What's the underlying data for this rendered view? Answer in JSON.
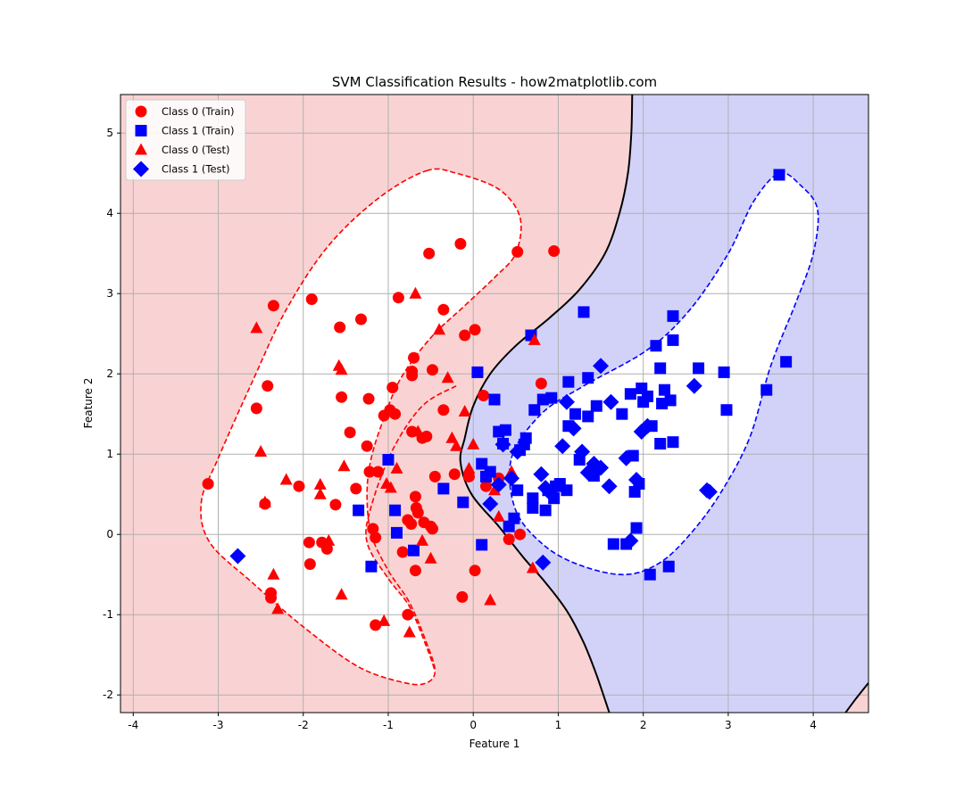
{
  "chart_data": {
    "type": "scatter",
    "title": "SVM Classification Results - how2matplotlib.com",
    "xlabel": "Feature 1",
    "ylabel": "Feature 2",
    "xlim": [
      -4.15,
      4.65
    ],
    "ylim": [
      -2.22,
      5.48
    ],
    "xticks": [
      -4,
      -3,
      -2,
      -1,
      0,
      1,
      2,
      3,
      4
    ],
    "yticks": [
      -2,
      -1,
      0,
      1,
      2,
      3,
      4,
      5
    ],
    "grid": true,
    "legend_position": "top-left",
    "colors": {
      "class0": "#ff0000",
      "class1": "#0000ff",
      "region0": "#f9d3d3",
      "region1": "#d2d2f8",
      "boundary": "#000000",
      "grid": "#b0b0b0"
    },
    "regions": [
      {
        "name": "class-0-region",
        "color": "#f9d3d3"
      },
      {
        "name": "class-1-region",
        "color": "#d2d2f8"
      }
    ],
    "decision_boundary": [
      [
        1.87,
        5.48
      ],
      [
        1.86,
        5.0
      ],
      [
        1.82,
        4.5
      ],
      [
        1.72,
        4.0
      ],
      [
        1.55,
        3.5
      ],
      [
        1.25,
        3.05
      ],
      [
        0.9,
        2.7
      ],
      [
        0.5,
        2.35
      ],
      [
        0.2,
        2.0
      ],
      [
        0.0,
        1.6
      ],
      [
        -0.1,
        1.2
      ],
      [
        -0.15,
        0.9
      ],
      [
        -0.02,
        0.5
      ],
      [
        0.3,
        0.1
      ],
      [
        0.6,
        -0.3
      ],
      [
        0.85,
        -0.6
      ],
      [
        1.1,
        -0.95
      ],
      [
        1.3,
        -1.35
      ],
      [
        1.45,
        -1.75
      ],
      [
        1.6,
        -2.22
      ]
    ],
    "decision_boundary_2": [
      [
        4.38,
        -2.22
      ],
      [
        4.5,
        -2.05
      ],
      [
        4.65,
        -1.85
      ]
    ],
    "margin_class0": [
      [
        -0.55,
        4.53
      ],
      [
        -0.2,
        4.5
      ],
      [
        0.3,
        4.3
      ],
      [
        0.55,
        3.95
      ],
      [
        0.5,
        3.5
      ],
      [
        0.25,
        3.2
      ],
      [
        -0.1,
        2.85
      ],
      [
        -0.5,
        2.45
      ],
      [
        -0.85,
        1.95
      ],
      [
        -1.05,
        1.45
      ],
      [
        -1.2,
        0.95
      ],
      [
        -1.25,
        0.5
      ],
      [
        -1.2,
        0.0
      ],
      [
        -1.0,
        -0.45
      ],
      [
        -0.75,
        -0.85
      ],
      [
        -0.55,
        -1.35
      ],
      [
        -0.45,
        -1.7
      ],
      [
        -0.55,
        -1.85
      ],
      [
        -0.8,
        -1.85
      ],
      [
        -1.35,
        -1.65
      ],
      [
        -2.0,
        -1.15
      ],
      [
        -2.6,
        -0.6
      ],
      [
        -3.1,
        -0.1
      ],
      [
        -3.2,
        0.4
      ],
      [
        -3.0,
        0.95
      ],
      [
        -2.6,
        1.9
      ],
      [
        -2.2,
        2.8
      ],
      [
        -1.7,
        3.6
      ],
      [
        -1.1,
        4.2
      ],
      [
        -0.55,
        4.53
      ]
    ],
    "margin_class0_inner": [
      [
        -0.2,
        1.85
      ],
      [
        -0.6,
        1.6
      ],
      [
        -0.95,
        1.05
      ],
      [
        -1.2,
        0.35
      ],
      [
        -1.25,
        -0.1
      ],
      [
        -1.0,
        -0.55
      ],
      [
        -0.75,
        -0.9
      ],
      [
        -0.55,
        -1.4
      ],
      [
        -0.45,
        -1.7
      ]
    ],
    "margin_class1": [
      [
        3.6,
        4.5
      ],
      [
        3.85,
        4.35
      ],
      [
        4.05,
        4.05
      ],
      [
        4.0,
        3.5
      ],
      [
        3.8,
        2.9
      ],
      [
        3.5,
        2.1
      ],
      [
        3.25,
        1.2
      ],
      [
        2.9,
        0.5
      ],
      [
        2.55,
        0.0
      ],
      [
        2.2,
        -0.35
      ],
      [
        1.8,
        -0.5
      ],
      [
        1.3,
        -0.4
      ],
      [
        0.85,
        -0.15
      ],
      [
        0.5,
        0.3
      ],
      [
        0.45,
        0.95
      ],
      [
        0.8,
        1.5
      ],
      [
        1.3,
        1.85
      ],
      [
        2.05,
        2.3
      ],
      [
        2.55,
        2.8
      ],
      [
        3.0,
        3.5
      ],
      [
        3.3,
        4.15
      ],
      [
        3.6,
        4.5
      ]
    ],
    "series": [
      {
        "name": "Class 0 (Train)",
        "marker": "circle",
        "color": "#ff0000",
        "points": [
          [
            -3.12,
            0.63
          ],
          [
            -2.55,
            1.57
          ],
          [
            -2.45,
            0.38
          ],
          [
            -2.42,
            1.85
          ],
          [
            -2.38,
            -0.73
          ],
          [
            -2.38,
            -0.79
          ],
          [
            -2.35,
            2.85
          ],
          [
            -2.05,
            0.6
          ],
          [
            -1.93,
            -0.1
          ],
          [
            -1.92,
            -0.37
          ],
          [
            -1.9,
            2.93
          ],
          [
            -1.78,
            -0.1
          ],
          [
            -1.72,
            -0.18
          ],
          [
            -1.62,
            0.37
          ],
          [
            -1.57,
            2.58
          ],
          [
            -1.55,
            1.71
          ],
          [
            -1.45,
            1.27
          ],
          [
            -1.38,
            0.57
          ],
          [
            -1.32,
            2.68
          ],
          [
            -1.25,
            1.1
          ],
          [
            -1.23,
            1.69
          ],
          [
            -1.22,
            0.78
          ],
          [
            -1.18,
            0.07
          ],
          [
            -1.15,
            -1.13
          ],
          [
            -1.15,
            -0.04
          ],
          [
            -1.12,
            0.78
          ],
          [
            -1.05,
            1.48
          ],
          [
            -0.98,
            1.55
          ],
          [
            -0.95,
            1.83
          ],
          [
            -0.92,
            1.5
          ],
          [
            -0.88,
            2.95
          ],
          [
            -0.83,
            -0.22
          ],
          [
            -0.77,
            0.18
          ],
          [
            -0.77,
            -1.0
          ],
          [
            -0.73,
            0.13
          ],
          [
            -0.72,
            2.03
          ],
          [
            -0.72,
            1.98
          ],
          [
            -0.72,
            1.28
          ],
          [
            -0.7,
            2.2
          ],
          [
            -0.68,
            -0.45
          ],
          [
            -0.68,
            0.47
          ],
          [
            -0.67,
            0.33
          ],
          [
            -0.65,
            0.27
          ],
          [
            -0.6,
            1.2
          ],
          [
            -0.58,
            0.15
          ],
          [
            -0.55,
            1.22
          ],
          [
            -0.52,
            3.5
          ],
          [
            -0.5,
            0.1
          ],
          [
            -0.48,
            0.07
          ],
          [
            -0.48,
            2.05
          ],
          [
            -0.45,
            0.72
          ],
          [
            -0.35,
            2.8
          ],
          [
            -0.35,
            1.55
          ],
          [
            -0.22,
            0.75
          ],
          [
            -0.15,
            3.62
          ],
          [
            -0.13,
            -0.78
          ],
          [
            -0.1,
            2.48
          ],
          [
            -0.05,
            0.72
          ],
          [
            0.02,
            -0.45
          ],
          [
            0.02,
            2.55
          ],
          [
            0.12,
            1.73
          ],
          [
            0.15,
            0.6
          ],
          [
            0.3,
            0.7
          ],
          [
            0.42,
            -0.06
          ],
          [
            0.52,
            3.52
          ],
          [
            0.55,
            0.0
          ],
          [
            0.8,
            1.88
          ],
          [
            0.95,
            3.53
          ]
        ]
      },
      {
        "name": "Class 1 (Train)",
        "marker": "square",
        "color": "#0000ff",
        "points": [
          [
            -1.35,
            0.3
          ],
          [
            -1.2,
            -0.4
          ],
          [
            -1.0,
            0.93
          ],
          [
            -0.92,
            0.3
          ],
          [
            -0.9,
            0.02
          ],
          [
            -0.7,
            -0.2
          ],
          [
            -0.35,
            0.57
          ],
          [
            -0.12,
            0.4
          ],
          [
            0.05,
            2.02
          ],
          [
            0.1,
            0.88
          ],
          [
            0.1,
            -0.13
          ],
          [
            0.15,
            0.72
          ],
          [
            0.2,
            0.78
          ],
          [
            0.25,
            1.68
          ],
          [
            0.3,
            1.28
          ],
          [
            0.35,
            1.13
          ],
          [
            0.38,
            1.3
          ],
          [
            0.42,
            0.1
          ],
          [
            0.48,
            0.2
          ],
          [
            0.52,
            0.55
          ],
          [
            0.55,
            1.05
          ],
          [
            0.6,
            1.12
          ],
          [
            0.62,
            1.2
          ],
          [
            0.68,
            2.48
          ],
          [
            0.7,
            0.33
          ],
          [
            0.7,
            0.45
          ],
          [
            0.72,
            1.55
          ],
          [
            0.82,
            1.68
          ],
          [
            0.85,
            0.3
          ],
          [
            0.88,
            0.55
          ],
          [
            0.92,
            1.7
          ],
          [
            0.95,
            0.45
          ],
          [
            0.97,
            0.6
          ],
          [
            1.02,
            0.63
          ],
          [
            1.1,
            0.55
          ],
          [
            1.12,
            1.35
          ],
          [
            1.12,
            1.9
          ],
          [
            1.2,
            1.5
          ],
          [
            1.25,
            0.93
          ],
          [
            1.3,
            2.77
          ],
          [
            1.35,
            1.47
          ],
          [
            1.35,
            1.95
          ],
          [
            1.42,
            0.73
          ],
          [
            1.45,
            1.6
          ],
          [
            1.65,
            -0.12
          ],
          [
            1.75,
            1.5
          ],
          [
            1.8,
            -0.12
          ],
          [
            1.85,
            1.75
          ],
          [
            1.88,
            0.98
          ],
          [
            1.9,
            0.53
          ],
          [
            1.92,
            0.08
          ],
          [
            1.95,
            0.63
          ],
          [
            1.98,
            1.82
          ],
          [
            2.0,
            1.65
          ],
          [
            2.05,
            1.72
          ],
          [
            2.08,
            -0.5
          ],
          [
            2.1,
            1.35
          ],
          [
            2.15,
            2.35
          ],
          [
            2.2,
            2.07
          ],
          [
            2.2,
            1.13
          ],
          [
            2.22,
            1.63
          ],
          [
            2.25,
            1.8
          ],
          [
            2.3,
            -0.4
          ],
          [
            2.32,
            1.67
          ],
          [
            2.35,
            1.15
          ],
          [
            2.35,
            2.42
          ],
          [
            2.35,
            2.72
          ],
          [
            2.65,
            2.07
          ],
          [
            2.95,
            2.02
          ],
          [
            2.98,
            1.55
          ],
          [
            3.45,
            1.8
          ],
          [
            3.6,
            4.48
          ],
          [
            3.68,
            2.15
          ]
        ]
      },
      {
        "name": "Class 0 (Test)",
        "marker": "triangle",
        "color": "#ff0000",
        "points": [
          [
            -2.55,
            2.57
          ],
          [
            -2.5,
            1.03
          ],
          [
            -2.45,
            0.4
          ],
          [
            -2.35,
            -0.5
          ],
          [
            -2.3,
            -0.93
          ],
          [
            -2.2,
            0.68
          ],
          [
            -1.8,
            0.62
          ],
          [
            -1.8,
            0.5
          ],
          [
            -1.7,
            -0.08
          ],
          [
            -1.58,
            2.1
          ],
          [
            -1.55,
            2.05
          ],
          [
            -1.55,
            -0.75
          ],
          [
            -1.52,
            0.85
          ],
          [
            -1.05,
            -1.08
          ],
          [
            -1.02,
            0.63
          ],
          [
            -0.97,
            0.58
          ],
          [
            -0.9,
            0.82
          ],
          [
            -0.75,
            -1.22
          ],
          [
            -0.68,
            3.0
          ],
          [
            -0.65,
            1.28
          ],
          [
            -0.6,
            -0.08
          ],
          [
            -0.5,
            -0.3
          ],
          [
            -0.4,
            2.55
          ],
          [
            -0.3,
            1.95
          ],
          [
            -0.25,
            1.2
          ],
          [
            -0.2,
            1.1
          ],
          [
            -0.1,
            1.53
          ],
          [
            -0.05,
            0.82
          ],
          [
            0.0,
            1.12
          ],
          [
            0.2,
            -0.82
          ],
          [
            0.25,
            0.55
          ],
          [
            0.3,
            0.22
          ],
          [
            0.45,
            0.78
          ],
          [
            0.72,
            2.42
          ],
          [
            0.7,
            -0.42
          ]
        ]
      },
      {
        "name": "Class 1 (Test)",
        "marker": "diamond",
        "color": "#0000ff",
        "points": [
          [
            -2.77,
            -0.27
          ],
          [
            0.2,
            0.38
          ],
          [
            0.3,
            0.62
          ],
          [
            0.35,
            1.12
          ],
          [
            0.45,
            0.7
          ],
          [
            0.52,
            1.03
          ],
          [
            0.8,
            0.75
          ],
          [
            0.82,
            -0.35
          ],
          [
            0.85,
            0.58
          ],
          [
            0.92,
            0.5
          ],
          [
            1.05,
            1.1
          ],
          [
            1.1,
            1.65
          ],
          [
            1.18,
            1.32
          ],
          [
            1.28,
            1.03
          ],
          [
            1.35,
            0.77
          ],
          [
            1.42,
            0.88
          ],
          [
            1.5,
            2.1
          ],
          [
            1.5,
            0.83
          ],
          [
            1.6,
            0.6
          ],
          [
            1.62,
            1.65
          ],
          [
            1.8,
            0.95
          ],
          [
            1.85,
            -0.08
          ],
          [
            1.92,
            0.68
          ],
          [
            1.98,
            1.28
          ],
          [
            2.05,
            1.35
          ],
          [
            2.6,
            1.85
          ],
          [
            2.75,
            0.55
          ],
          [
            2.78,
            0.53
          ]
        ]
      }
    ]
  }
}
